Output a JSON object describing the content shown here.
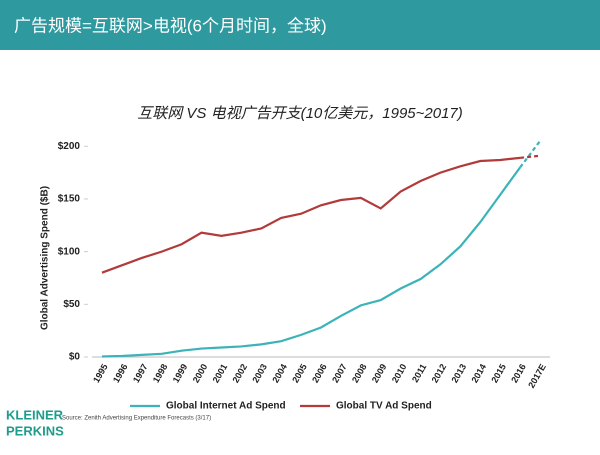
{
  "header": "广告规模=互联网>电视(6个月时间，全球)",
  "chart_data": {
    "type": "line",
    "title": "互联网 VS 电视广告开支(10亿美元，1995~2017)",
    "y_label": "Global Advertising Spend ($B)",
    "categories": [
      "1995",
      "1996",
      "1997",
      "1998",
      "1999",
      "2000",
      "2001",
      "2002",
      "2003",
      "2004",
      "2005",
      "2006",
      "2007",
      "2008",
      "2009",
      "2010",
      "2011",
      "2012",
      "2013",
      "2014",
      "2015",
      "2016",
      "2017E"
    ],
    "series": [
      {
        "name": "Global Internet Ad Spend",
        "color": "#3bb3b8",
        "values": [
          0.5,
          1,
          2,
          3,
          6,
          8,
          9,
          10,
          12,
          15,
          21,
          28,
          39,
          49,
          54,
          65,
          74,
          88,
          105,
          128,
          154,
          180,
          205
        ]
      },
      {
        "name": "Global TV Ad Spend",
        "color": "#b23a3a",
        "values": [
          80,
          87,
          94,
          100,
          107,
          118,
          115,
          118,
          122,
          132,
          136,
          144,
          149,
          151,
          141,
          157,
          167,
          175,
          181,
          186,
          187,
          189,
          191
        ]
      }
    ],
    "dash_last_segment": true,
    "ylim": [
      0,
      205
    ],
    "yticks": [
      {
        "value": 0,
        "label": "$0"
      },
      {
        "value": 50,
        "label": "$50"
      },
      {
        "value": 100,
        "label": "$100"
      },
      {
        "value": 150,
        "label": "$150"
      },
      {
        "value": 200,
        "label": "$200"
      }
    ],
    "grid": false
  },
  "footer": {
    "source": "Source: Zenith Advertising Expenditure Forecasts (3/17)",
    "logo": [
      "KLEINER",
      "PERKINS"
    ]
  }
}
